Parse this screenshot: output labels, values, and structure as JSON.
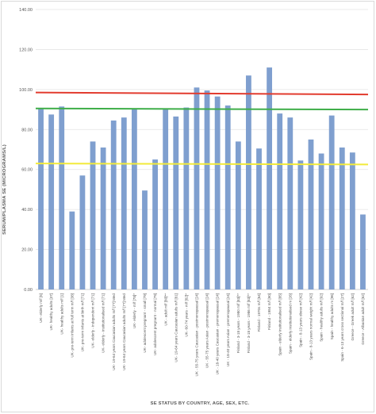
{
  "chart_data": {
    "type": "bar",
    "title": "",
    "xlabel": "SE STATUS BY COUNTRY, AGE, SEX, ETC.",
    "ylabel": "SERUM/PLASMA SE (MICROGRAMS/L)",
    "ylim": [
      0,
      140
    ],
    "yticks": [
      "0.00",
      "20.00",
      "40.00",
      "60.00",
      "80.00",
      "100.00",
      "120.00",
      "140.00"
    ],
    "grid": true,
    "bar_color": "#7f9fcf",
    "categories": [
      "UK- elderly m/f [5]",
      "UK- healthy adults [37]",
      "UK- healthy adults m/f [1]",
      "UK- pre-term infants at full term m/f [38]",
      "UK- pre-term infants at birth m/f [71]",
      "UK- elderly - independent m/f [71]",
      "UK- elderly - institutionalised m/f [71]",
      "UK- 19-64 years Caucasian adults m/f [77] Med",
      "UK- 19-64 years Caucasian adults m/f [77] Med",
      "UK- elderly - m/f [78]*",
      "UK- adolescent pregnant - small [79]",
      "UK- adolescent pregnant - normal [79]",
      "UK - adult m/f [80]**",
      "UK- 19-64 years Caucasian adults m/f [81]",
      "UK- 60-74 years - m/f [82]*",
      "UK - 55-75 years Caucasian - postmenopausal [24]",
      "UK - 55-75 years Asian - postmenopausal [24]",
      "UK - 18-40 years Caucasian - premenopausal [24]",
      "UK - 18-40 years Asian - premenopausal [24]",
      "Finland - 3-18 years - 1980 m/f [83]**",
      "Finland - 3-18 years - 1986 m/f [83]**",
      "Finland - 1970s m/f [84]",
      "Finland - 1984 m/f [90]",
      "Spain - elderly institutionalised m/f [85]",
      "Spain - elderly institutionalised m [26]",
      "Spain - 8-13 years obese m/f [42]",
      "Spain - 8-13 years normal weight m/f [42]",
      "Spain - healthy adults m/f [92]",
      "Spain - healthy adults m [96]",
      "Spain - 6-13 years cross sectional m/f [27]",
      "Greece - Greek adult m/f [62]",
      "Greece - Albanian adult m/f [62]"
    ],
    "values": [
      90.5,
      87.5,
      91.5,
      39,
      57,
      74,
      71,
      84.5,
      86,
      90.5,
      49.5,
      65,
      90,
      86.5,
      91,
      101,
      99.5,
      96.5,
      92,
      74,
      107,
      70.5,
      111,
      88,
      86,
      64.5,
      75,
      68,
      87,
      71,
      68.5,
      37.5
    ],
    "reference_lines": [
      {
        "color": "#e23b2e",
        "from": 98.5,
        "to": 97.5
      },
      {
        "color": "#3fae49",
        "from": 90.5,
        "to": 90.0
      },
      {
        "color": "#f2ea3a",
        "from": 63.0,
        "to": 62.5
      }
    ]
  }
}
